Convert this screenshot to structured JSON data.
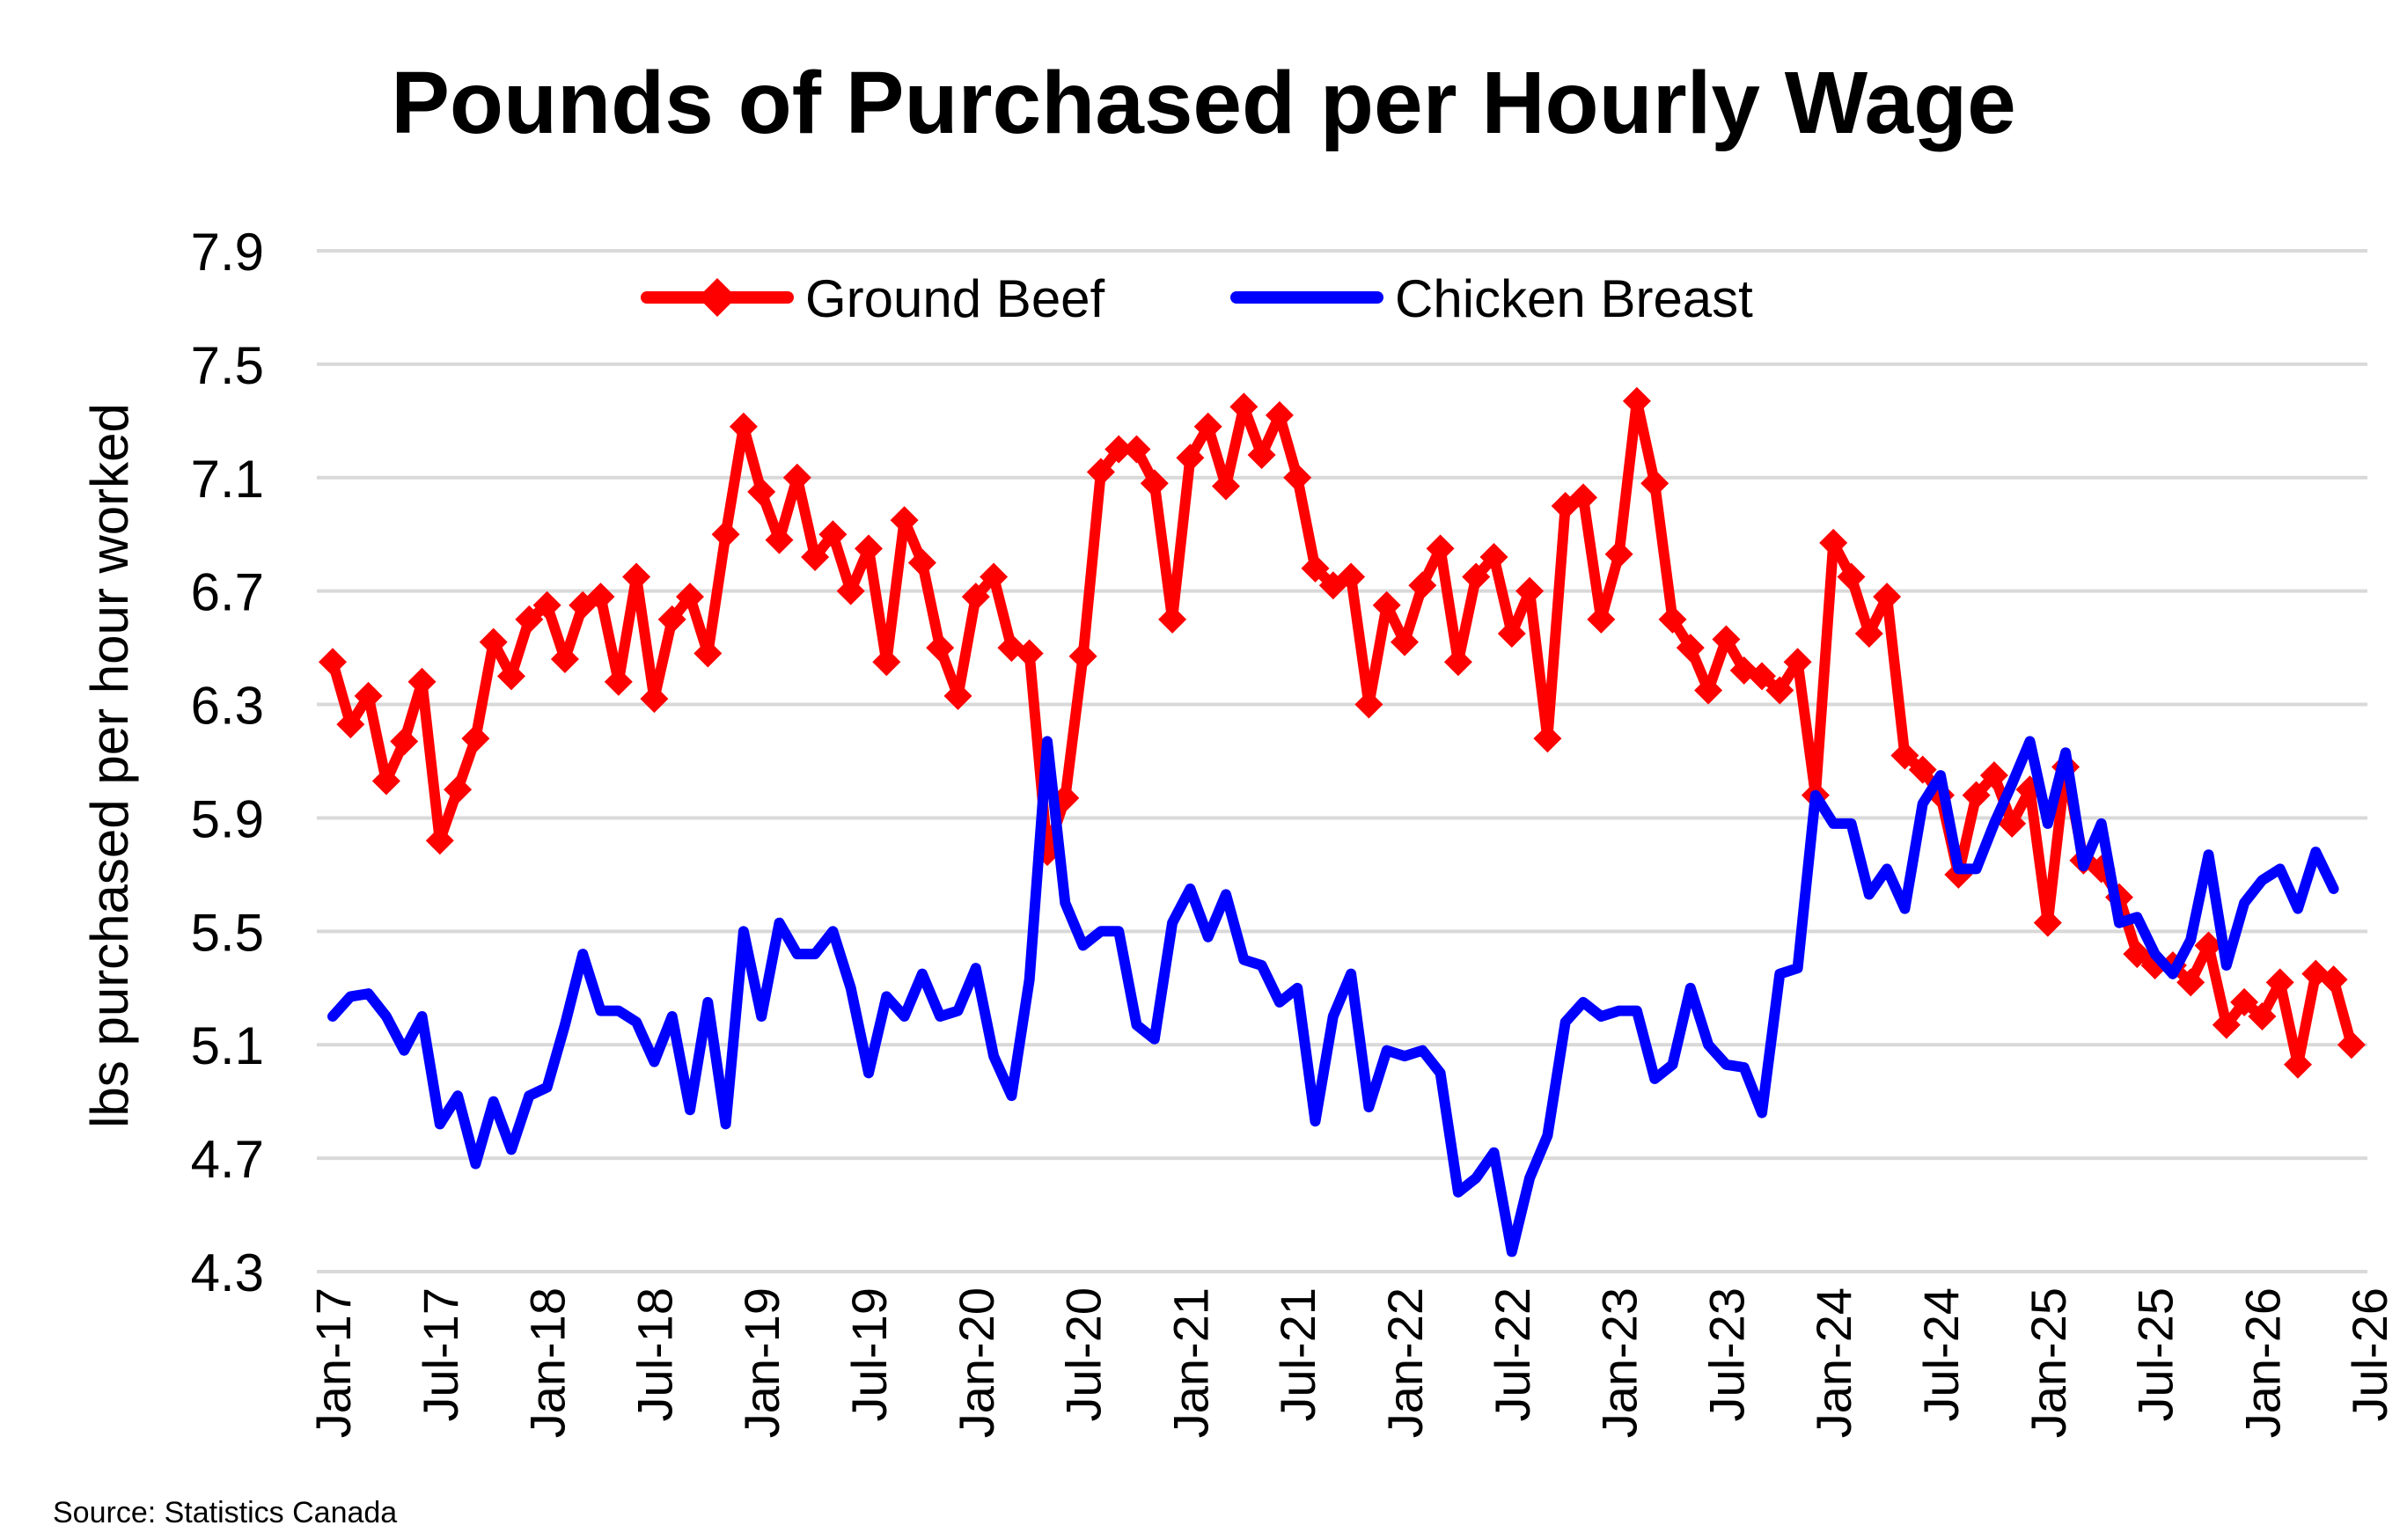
{
  "source": "Source: Statistics Canada",
  "chart_data": {
    "type": "line",
    "title": "Pounds of Purchased per Hourly Wage",
    "xlabel": "",
    "ylabel": "lbs purchased per hour worked",
    "ylim": [
      4.3,
      7.9
    ],
    "yticks": [
      "7.9",
      "7.5",
      "7.1",
      "6.7",
      "6.3",
      "5.9",
      "5.5",
      "5.1",
      "4.7",
      "4.3"
    ],
    "xticks": [
      "Jan-17",
      "Jul-17",
      "Jan-18",
      "Jul-18",
      "Jan-19",
      "Jul-19",
      "Jan-20",
      "Jul-20",
      "Jan-21",
      "Jul-21",
      "Jan-22",
      "Jul-22",
      "Jan-23",
      "Jul-23",
      "Jan-24",
      "Jul-24",
      "Jan-25",
      "Jul-25",
      "Jan-26",
      "Jul-26"
    ],
    "x_start": "Jan-17",
    "grid": true,
    "legend": "top",
    "series": [
      {
        "name": "Ground Beef",
        "color": "#ff0000",
        "marker": "diamond",
        "values": [
          6.45,
          6.23,
          6.33,
          6.03,
          6.17,
          6.38,
          5.82,
          6.0,
          6.18,
          6.52,
          6.4,
          6.6,
          6.65,
          6.46,
          6.65,
          6.68,
          6.38,
          6.75,
          6.32,
          6.6,
          6.68,
          6.48,
          6.9,
          7.28,
          7.05,
          6.88,
          7.1,
          6.82,
          6.9,
          6.7,
          6.85,
          6.45,
          6.95,
          6.8,
          6.5,
          6.33,
          6.68,
          6.75,
          6.5,
          6.48,
          5.78,
          5.97,
          6.47,
          7.12,
          7.2,
          7.2,
          7.08,
          6.6,
          7.17,
          7.28,
          7.07,
          7.35,
          7.18,
          7.32,
          7.1,
          6.78,
          6.72,
          6.75,
          6.3,
          6.65,
          6.52,
          6.72,
          6.85,
          6.45,
          6.75,
          6.82,
          6.55,
          6.7,
          6.18,
          7.0,
          7.03,
          6.6,
          6.83,
          7.37,
          7.08,
          6.6,
          6.5,
          6.35,
          6.53,
          6.42,
          6.4,
          6.35,
          6.45,
          5.98,
          6.87,
          6.75,
          6.55,
          6.68,
          6.12,
          6.07,
          5.98,
          5.7,
          5.98,
          6.05,
          5.88,
          6.0,
          5.53,
          6.08,
          5.75,
          5.72,
          5.62,
          5.42,
          5.38,
          5.38,
          5.32,
          5.45,
          5.17,
          5.25,
          5.2,
          5.32,
          5.03,
          5.35,
          5.33,
          5.1
        ]
      },
      {
        "name": "Chicken Breast",
        "color": "#0000ff",
        "marker": "none",
        "values": [
          5.2,
          5.27,
          5.28,
          5.2,
          5.08,
          5.2,
          4.82,
          4.92,
          4.68,
          4.9,
          4.73,
          4.92,
          4.95,
          5.17,
          5.42,
          5.22,
          5.22,
          5.18,
          5.04,
          5.2,
          4.87,
          5.25,
          4.82,
          5.5,
          5.2,
          5.53,
          5.42,
          5.42,
          5.5,
          5.3,
          5.0,
          5.27,
          5.2,
          5.35,
          5.2,
          5.22,
          5.37,
          5.06,
          4.92,
          5.33,
          6.17,
          5.6,
          5.45,
          5.5,
          5.5,
          5.17,
          5.12,
          5.53,
          5.65,
          5.48,
          5.63,
          5.4,
          5.38,
          5.25,
          5.3,
          4.83,
          5.2,
          5.35,
          4.88,
          5.08,
          5.06,
          5.08,
          5.0,
          4.58,
          4.63,
          4.72,
          4.37,
          4.63,
          4.78,
          5.18,
          5.25,
          5.2,
          5.22,
          5.22,
          4.98,
          5.03,
          5.3,
          5.1,
          5.03,
          5.02,
          4.86,
          5.35,
          5.37,
          5.98,
          5.88,
          5.88,
          5.63,
          5.72,
          5.58,
          5.95,
          6.05,
          5.72,
          5.72,
          5.88,
          6.02,
          6.17,
          5.88,
          6.13,
          5.73,
          5.88,
          5.53,
          5.55,
          5.42,
          5.35,
          5.47,
          5.77,
          5.38,
          5.6,
          5.68,
          5.72,
          5.58,
          5.78,
          5.65
        ]
      }
    ]
  }
}
